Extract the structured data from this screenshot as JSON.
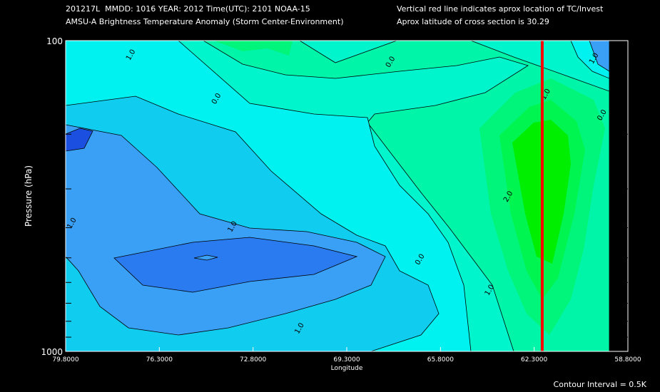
{
  "header": {
    "line1": "201217L  MMDD: 1016 YEAR: 2012 Time(UTC): 2101 NOAA-15",
    "line2": "AMSU-A Brightness Temperature Anomaly (Storm Center-Environment)",
    "note1": "Vertical red line indicates aprox location of TC/Invest",
    "note2": "Aprox latitude of cross section is 30.29"
  },
  "footer": {
    "contour_interval": "Contour Interval = 0.5K"
  },
  "chart_data": {
    "type": "heatmap",
    "title": "AMSU-A Brightness Temperature Anomaly (Storm Center-Environment)",
    "xlabel": "Longitude",
    "ylabel": "Pressure (hPa)",
    "xlim": [
      79.8,
      58.8
    ],
    "ylim": [
      1000,
      100
    ],
    "y_scale": "log",
    "x_tick_labels": [
      "79.8000",
      "76.3000",
      "72.8000",
      "69.3000",
      "65.8000",
      "62.3000",
      "58.8000"
    ],
    "x_tick_values": [
      79.8,
      76.3,
      72.8,
      69.3,
      65.8,
      62.3,
      58.8
    ],
    "y_tick_labels": [
      "100",
      "1000"
    ],
    "y_tick_values": [
      100,
      1000
    ],
    "storm_longitude": 62.0,
    "storm_line_color": "#ff0000",
    "contour_labels": [
      {
        "text": "1.0",
        "lon": 77.3,
        "p": 112
      },
      {
        "text": "0.0",
        "lon": 74.1,
        "p": 155
      },
      {
        "text": "1.0",
        "lon": 79.5,
        "p": 390
      },
      {
        "text": "1.0",
        "lon": 73.5,
        "p": 400
      },
      {
        "text": "0.0",
        "lon": 67.6,
        "p": 118
      },
      {
        "text": "0.0",
        "lon": 66.5,
        "p": 510
      },
      {
        "text": "1.0",
        "lon": 71.0,
        "p": 850
      },
      {
        "text": "2.0",
        "lon": 63.2,
        "p": 320
      },
      {
        "text": "1.0",
        "lon": 63.9,
        "p": 640
      },
      {
        "text": "1.0",
        "lon": 61.8,
        "p": 150
      },
      {
        "text": "1.0",
        "lon": 60.0,
        "p": 115
      },
      {
        "text": "0.0",
        "lon": 59.7,
        "p": 175
      }
    ],
    "colorscale": [
      "#1a4fe0",
      "#2a7af0",
      "#3aa0f5",
      "#10cdf0",
      "#00f2f0",
      "#00f5cd",
      "#00f5a8",
      "#00f57a",
      "#00f550",
      "#00ee00"
    ]
  }
}
